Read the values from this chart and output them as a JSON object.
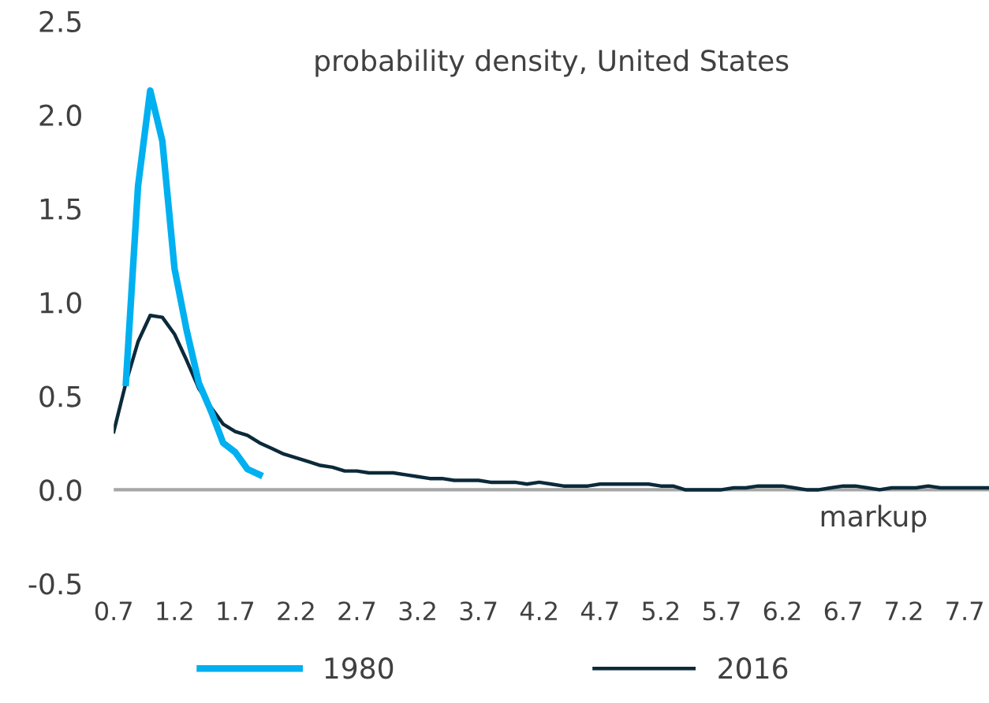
{
  "chart_data": {
    "type": "line",
    "title": "probability density, United States",
    "xlabel": "markup",
    "xlim": [
      0.7,
      7.9
    ],
    "xticks": [
      0.7,
      1.2,
      1.7,
      2.2,
      2.7,
      3.2,
      3.7,
      4.2,
      4.7,
      5.2,
      5.7,
      6.2,
      6.7,
      7.2,
      7.7
    ],
    "ylim": [
      -0.5,
      2.5
    ],
    "yticks": [
      {
        "value": -0.5,
        "label": "-0.5"
      },
      {
        "value": 0,
        "label": "0.0"
      },
      {
        "value": 0.5,
        "label": "0.5"
      },
      {
        "value": 1,
        "label": "1.0"
      },
      {
        "value": 1.5,
        "label": "1.5"
      },
      {
        "value": 2,
        "label": "2.0"
      },
      {
        "value": 2.5,
        "label": "2.5"
      }
    ],
    "grid": false,
    "legend": "bottom",
    "marker": "none",
    "line_style": "solid",
    "ref_lines": [
      {
        "axis": "y",
        "value": 0,
        "color": "#a6a6a6"
      }
    ],
    "series": [
      {
        "name": "1980",
        "color": "#00b0f0",
        "x": [
          0.8,
          0.9,
          1.0,
          1.1,
          1.2,
          1.3,
          1.4,
          1.5,
          1.6,
          1.7,
          1.8,
          1.9
        ],
        "values": [
          0.57,
          1.62,
          2.13,
          1.86,
          1.18,
          0.85,
          0.57,
          0.42,
          0.25,
          0.2,
          0.11,
          0.08
        ]
      },
      {
        "name": "2016",
        "color": "#0b2a3a",
        "x": [
          0.7,
          0.8,
          0.9,
          1.0,
          1.1,
          1.2,
          1.3,
          1.4,
          1.5,
          1.6,
          1.7,
          1.8,
          1.9,
          2.0,
          2.1,
          2.2,
          2.3,
          2.4,
          2.5,
          2.6,
          2.7,
          2.8,
          2.9,
          3.0,
          3.1,
          3.2,
          3.3,
          3.4,
          3.5,
          3.6,
          3.7,
          3.8,
          3.9,
          4.0,
          4.1,
          4.2,
          4.3,
          4.4,
          4.5,
          4.6,
          4.7,
          4.8,
          4.9,
          5.0,
          5.1,
          5.2,
          5.3,
          5.4,
          5.5,
          5.6,
          5.7,
          5.8,
          5.9,
          6.0,
          6.1,
          6.2,
          6.3,
          6.4,
          6.5,
          6.6,
          6.7,
          6.8,
          6.9,
          7.0,
          7.1,
          7.2,
          7.3,
          7.4,
          7.5,
          7.6,
          7.7,
          7.8,
          7.9
        ],
        "values": [
          0.31,
          0.57,
          0.79,
          0.93,
          0.92,
          0.83,
          0.69,
          0.54,
          0.44,
          0.35,
          0.31,
          0.29,
          0.25,
          0.22,
          0.19,
          0.17,
          0.15,
          0.13,
          0.12,
          0.1,
          0.1,
          0.09,
          0.09,
          0.09,
          0.08,
          0.07,
          0.06,
          0.06,
          0.05,
          0.05,
          0.05,
          0.04,
          0.04,
          0.04,
          0.03,
          0.04,
          0.03,
          0.02,
          0.02,
          0.02,
          0.03,
          0.03,
          0.03,
          0.03,
          0.03,
          0.02,
          0.02,
          0.0,
          0.0,
          0.0,
          0.0,
          0.01,
          0.01,
          0.02,
          0.02,
          0.02,
          0.01,
          0.0,
          0.0,
          0.01,
          0.02,
          0.02,
          0.01,
          0.0,
          0.01,
          0.01,
          0.01,
          0.02,
          0.01,
          0.01,
          0.01,
          0.01,
          0.01
        ]
      }
    ]
  }
}
